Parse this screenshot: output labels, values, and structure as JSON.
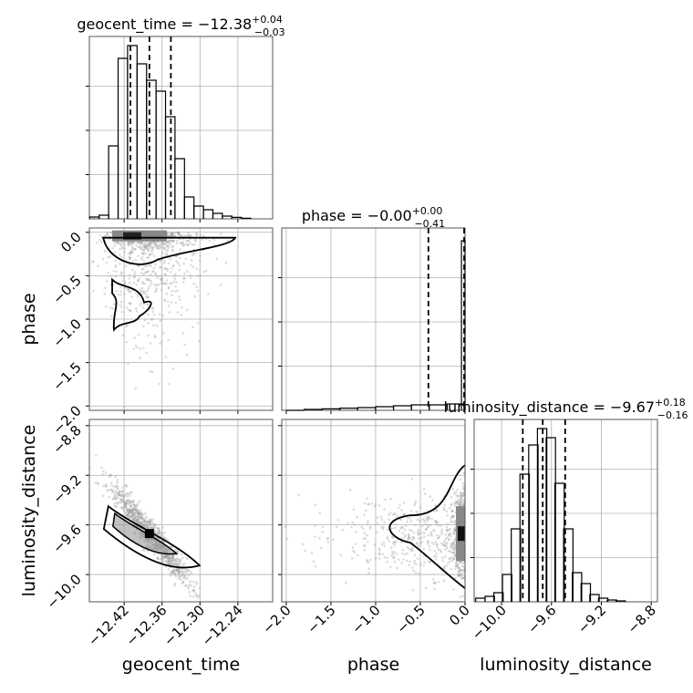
{
  "chart_data": [
    {
      "type": "histogram",
      "title": "geocent_time = −12.38",
      "title_sup": "+0.04",
      "title_sub": "−0.03",
      "x_range": [
        -12.475,
        -12.185
      ],
      "quantiles": [
        -12.41,
        -12.38,
        -12.346
      ],
      "bins": [
        {
          "x": -12.467,
          "count": 0.01
        },
        {
          "x": -12.452,
          "count": 0.02
        },
        {
          "x": -12.437,
          "count": 0.4
        },
        {
          "x": -12.422,
          "count": 0.88
        },
        {
          "x": -12.407,
          "count": 0.95
        },
        {
          "x": -12.392,
          "count": 0.85
        },
        {
          "x": -12.377,
          "count": 0.76
        },
        {
          "x": -12.362,
          "count": 0.7
        },
        {
          "x": -12.347,
          "count": 0.56
        },
        {
          "x": -12.332,
          "count": 0.33
        },
        {
          "x": -12.317,
          "count": 0.12
        },
        {
          "x": -12.302,
          "count": 0.07
        },
        {
          "x": -12.287,
          "count": 0.05
        },
        {
          "x": -12.272,
          "count": 0.03
        },
        {
          "x": -12.257,
          "count": 0.015
        },
        {
          "x": -12.242,
          "count": 0.008
        },
        {
          "x": -12.227,
          "count": 0.003
        }
      ]
    },
    {
      "type": "histogram",
      "title": "phase = −0.00",
      "title_sup": "+0.00",
      "title_sub": "−0.41",
      "x_range": [
        -2.05,
        0.0
      ],
      "quantiles": [
        -0.41,
        -0.0
      ],
      "bins": [
        {
          "x": -1.9,
          "count": 0.0
        },
        {
          "x": -1.7,
          "count": 0.005
        },
        {
          "x": -1.5,
          "count": 0.008
        },
        {
          "x": -1.3,
          "count": 0.012
        },
        {
          "x": -1.1,
          "count": 0.015
        },
        {
          "x": -0.9,
          "count": 0.02
        },
        {
          "x": -0.7,
          "count": 0.025
        },
        {
          "x": -0.5,
          "count": 0.03
        },
        {
          "x": -0.3,
          "count": 0.03
        },
        {
          "x": -0.1,
          "count": 0.035
        },
        {
          "x": -0.02,
          "count": 0.93
        }
      ]
    },
    {
      "type": "histogram",
      "title": "luminosity_distance = −9.67",
      "title_sup": "+0.18",
      "title_sub": "−0.16",
      "x_range": [
        -10.22,
        -8.75
      ],
      "quantiles": [
        -9.83,
        -9.67,
        -9.49
      ],
      "bins": [
        {
          "x": -10.17,
          "count": 0.02
        },
        {
          "x": -10.095,
          "count": 0.03
        },
        {
          "x": -10.025,
          "count": 0.05
        },
        {
          "x": -9.955,
          "count": 0.15
        },
        {
          "x": -9.885,
          "count": 0.4
        },
        {
          "x": -9.815,
          "count": 0.7
        },
        {
          "x": -9.745,
          "count": 0.86
        },
        {
          "x": -9.675,
          "count": 0.95
        },
        {
          "x": -9.605,
          "count": 0.9
        },
        {
          "x": -9.535,
          "count": 0.65
        },
        {
          "x": -9.465,
          "count": 0.4
        },
        {
          "x": -9.395,
          "count": 0.16
        },
        {
          "x": -9.325,
          "count": 0.1
        },
        {
          "x": -9.255,
          "count": 0.04
        },
        {
          "x": -9.185,
          "count": 0.02
        },
        {
          "x": -9.115,
          "count": 0.01
        },
        {
          "x": -9.045,
          "count": 0.005
        }
      ]
    },
    {
      "type": "scatter",
      "x_param": "geocent_time",
      "y_param": "phase",
      "x_range": [
        -12.475,
        -12.185
      ],
      "y_range": [
        -2.05,
        0.05
      ],
      "density_peak": {
        "x": -12.41,
        "y": -0.02
      }
    },
    {
      "type": "scatter",
      "x_param": "geocent_time",
      "y_param": "luminosity_distance",
      "x_range": [
        -12.475,
        -12.185
      ],
      "y_range": [
        -10.22,
        -8.75
      ],
      "density_peak": {
        "x": -12.38,
        "y": -9.67
      }
    },
    {
      "type": "scatter",
      "x_param": "phase",
      "y_param": "luminosity_distance",
      "x_range": [
        -2.05,
        0.0
      ],
      "y_range": [
        -10.22,
        -8.75
      ],
      "density_peak": {
        "x": -0.02,
        "y": -9.67
      }
    }
  ],
  "axes": {
    "geocent_time": {
      "label": "geocent_time",
      "ticks": [
        {
          "value": -12.42,
          "label": "−12.42"
        },
        {
          "value": -12.36,
          "label": "−12.36"
        },
        {
          "value": -12.3,
          "label": "−12.30"
        },
        {
          "value": -12.24,
          "label": "−12.24"
        }
      ]
    },
    "phase": {
      "label": "phase",
      "ticks": [
        {
          "value": -2.0,
          "label": "−2.0"
        },
        {
          "value": -1.5,
          "label": "−1.5"
        },
        {
          "value": -1.0,
          "label": "−1.0"
        },
        {
          "value": -0.5,
          "label": "−0.5"
        },
        {
          "value": 0.0,
          "label": "0.0"
        }
      ]
    },
    "luminosity_distance": {
      "label": "luminosity_distance",
      "ticks": [
        {
          "value": -10.0,
          "label": "−10.0"
        },
        {
          "value": -9.6,
          "label": "−9.6"
        },
        {
          "value": -9.2,
          "label": "−9.2"
        },
        {
          "value": -8.8,
          "label": "−8.8"
        }
      ]
    }
  },
  "colors": {
    "scatter": "#9a9a9a",
    "frame": "#555555",
    "grid": "#b0b0b0",
    "contour": "#000000"
  }
}
